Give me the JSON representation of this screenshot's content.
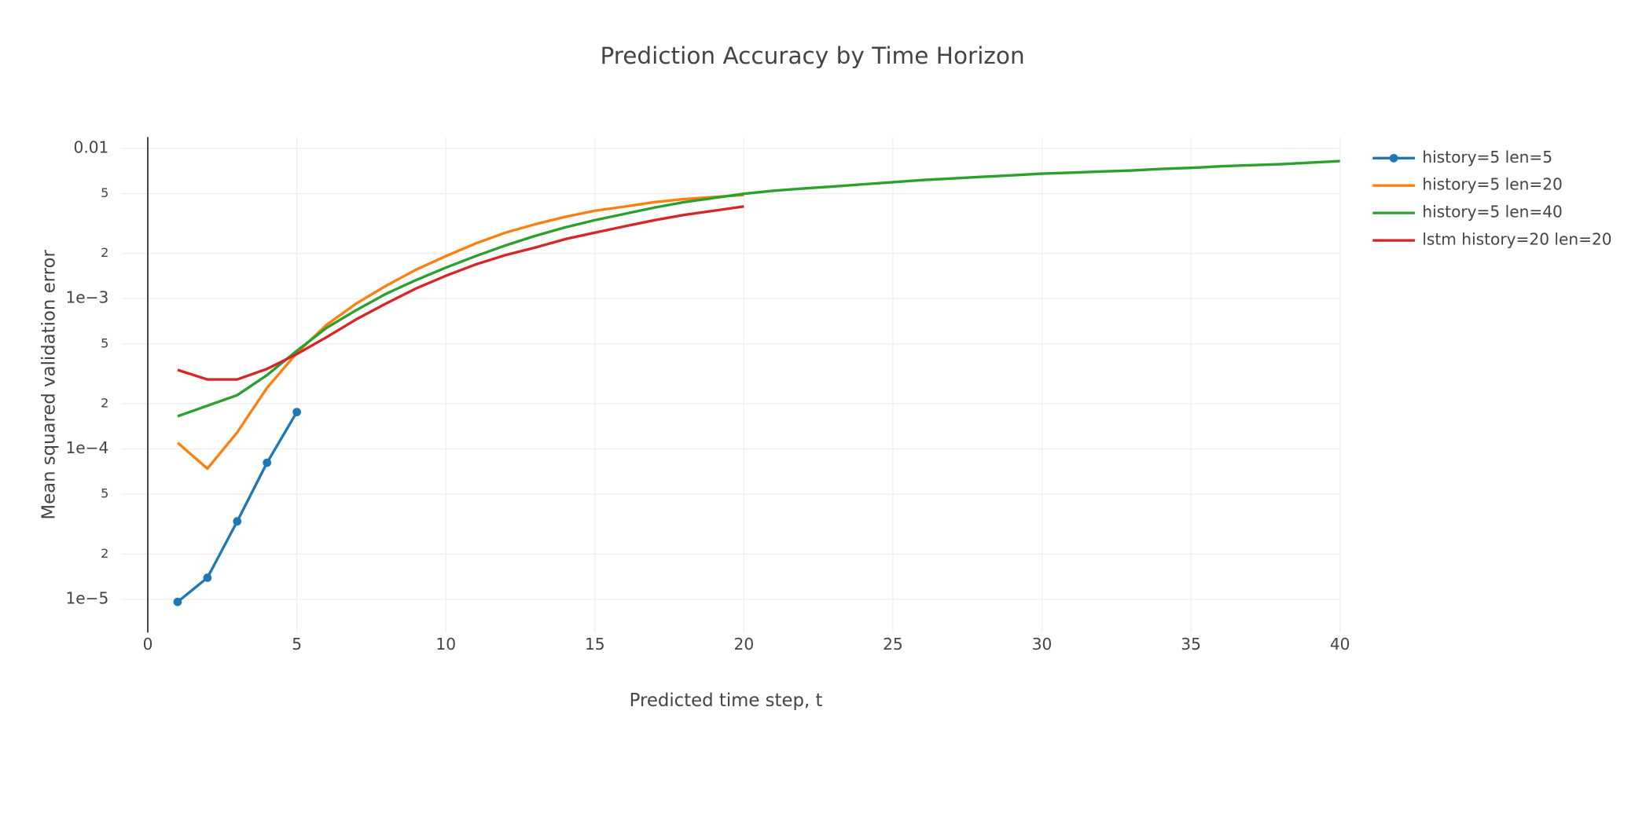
{
  "chart_data": {
    "type": "line",
    "title": "Prediction Accuracy by Time Horizon",
    "x_label": "Predicted time step, t",
    "y_label": "Mean squared validation error",
    "log_y": true,
    "grid": true,
    "legend": "right",
    "xlim": [
      -0.9,
      40
    ],
    "xticks": [
      0,
      5,
      10,
      15,
      20,
      25,
      30,
      35,
      40
    ],
    "ylim": [
      6e-06,
      0.0119
    ],
    "yticks": [
      {
        "value": 1e-05,
        "label": "1e−5"
      },
      {
        "value": 2e-05,
        "label": "2"
      },
      {
        "value": 5e-05,
        "label": "5"
      },
      {
        "value": 0.0001,
        "label": "1e−4"
      },
      {
        "value": 0.0002,
        "label": "2"
      },
      {
        "value": 0.0005,
        "label": "5"
      },
      {
        "value": 0.001,
        "label": "1e−3"
      },
      {
        "value": 0.002,
        "label": "2"
      },
      {
        "value": 0.005,
        "label": "5"
      },
      0.01
    ],
    "series": [
      {
        "name": "history=5 len=5",
        "color": "#1f77b4",
        "markers": true,
        "x": [
          1,
          2,
          3,
          4,
          5
        ],
        "values": [
          9.6e-06,
          1.39e-05,
          3.3e-05,
          8.1e-05,
          0.000176
        ]
      },
      {
        "name": "history=5 len=20",
        "color": "#ff7f0e",
        "markers": false,
        "x": [
          1,
          2,
          3,
          4,
          5,
          6,
          7,
          8,
          9,
          10,
          11,
          12,
          13,
          14,
          15,
          16,
          17,
          18,
          19,
          20
        ],
        "values": [
          0.00011,
          7.4e-05,
          0.000129,
          0.000255,
          0.000435,
          0.00067,
          0.00093,
          0.00122,
          0.00156,
          0.00192,
          0.00233,
          0.00275,
          0.00313,
          0.0035,
          0.00385,
          0.0041,
          0.00439,
          0.0046,
          0.00475,
          0.0049
        ]
      },
      {
        "name": "history=5 len=40",
        "color": "#2ca02c",
        "markers": false,
        "x": [
          1,
          2,
          3,
          4,
          5,
          6,
          7,
          8,
          9,
          10,
          11,
          12,
          13,
          14,
          15,
          16,
          17,
          18,
          19,
          20,
          21,
          22,
          23,
          24,
          25,
          26,
          27,
          28,
          29,
          30,
          31,
          32,
          33,
          34,
          35,
          36,
          37,
          38,
          39,
          40
        ],
        "values": [
          0.000165,
          0.000194,
          0.000228,
          0.00031,
          0.00045,
          0.00064,
          0.00084,
          0.00108,
          0.00133,
          0.00161,
          0.00192,
          0.00226,
          0.00262,
          0.00298,
          0.00333,
          0.00367,
          0.00404,
          0.00439,
          0.00468,
          0.00499,
          0.00523,
          0.00541,
          0.00558,
          0.00577,
          0.00596,
          0.00616,
          0.00631,
          0.00647,
          0.00662,
          0.00679,
          0.0069,
          0.00702,
          0.00713,
          0.0073,
          0.00742,
          0.0076,
          0.00773,
          0.00785,
          0.00804,
          0.00824
        ]
      },
      {
        "name": "lstm history=20 len=20",
        "color": "#d62728",
        "markers": false,
        "x": [
          1,
          2,
          3,
          4,
          5,
          6,
          7,
          8,
          9,
          10,
          11,
          12,
          13,
          14,
          15,
          16,
          17,
          18,
          19,
          20
        ],
        "values": [
          0.000336,
          0.00029,
          0.00029,
          0.000341,
          0.000428,
          0.000555,
          0.00073,
          0.00093,
          0.00117,
          0.00142,
          0.00169,
          0.00195,
          0.00219,
          0.00249,
          0.00275,
          0.00303,
          0.00333,
          0.00361,
          0.00385,
          0.00411
        ]
      }
    ]
  }
}
